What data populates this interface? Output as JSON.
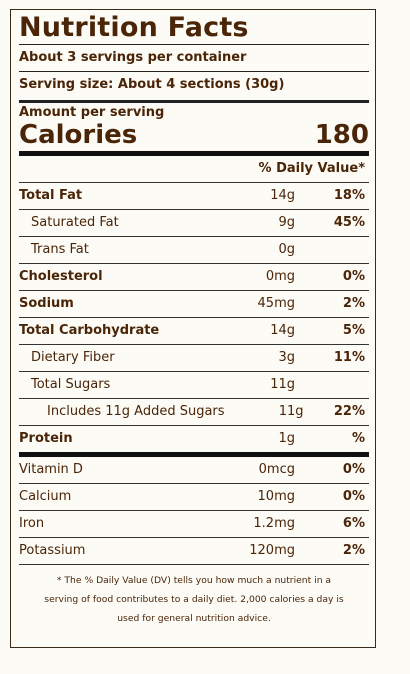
{
  "label": {
    "title": "Nutrition Facts",
    "servings": "About 3 servings per container",
    "serving_size": "Serving size: About 4 sections (30g)",
    "amount_per_serving": "Amount per serving",
    "calories_label": "Calories",
    "calories_value": "180",
    "dv_header": "% Daily Value*",
    "nutrients": [
      {
        "name": "Total Fat",
        "amount": "14g",
        "dv": "18%"
      },
      {
        "name": "Saturated Fat",
        "amount": "9g",
        "dv": "45%"
      },
      {
        "name": "Trans Fat",
        "amount": "0g",
        "dv": ""
      },
      {
        "name": "Cholesterol",
        "amount": "0mg",
        "dv": "0%"
      },
      {
        "name": "Sodium",
        "amount": "45mg",
        "dv": "2%"
      },
      {
        "name": "Total Carbohydrate",
        "amount": "14g",
        "dv": "5%"
      },
      {
        "name": "Dietary Fiber",
        "amount": "3g",
        "dv": "11%"
      },
      {
        "name": "Total Sugars",
        "amount": "11g",
        "dv": ""
      },
      {
        "name": "Includes 11g Added Sugars",
        "amount": "11g",
        "dv": "22%"
      },
      {
        "name": "Protein",
        "amount": "1g",
        "dv": "%"
      }
    ],
    "vitamins": [
      {
        "name": "Vitamin D",
        "amount": "0mcg",
        "dv": "0%"
      },
      {
        "name": "Calcium",
        "amount": "10mg",
        "dv": "0%"
      },
      {
        "name": "Iron",
        "amount": "1.2mg",
        "dv": "6%"
      },
      {
        "name": "Potassium",
        "amount": "120mg",
        "dv": "2%"
      }
    ],
    "footnote_lines": [
      "* The % Daily Value (DV) tells you how much a nutrient in a",
      "serving of food contributes to a daily diet. 2,000 calories a day is",
      "used for general nutrition advice."
    ]
  },
  "colors": {
    "text": "#4a2508",
    "rules": "#111111",
    "background": "#fdfbf6"
  }
}
